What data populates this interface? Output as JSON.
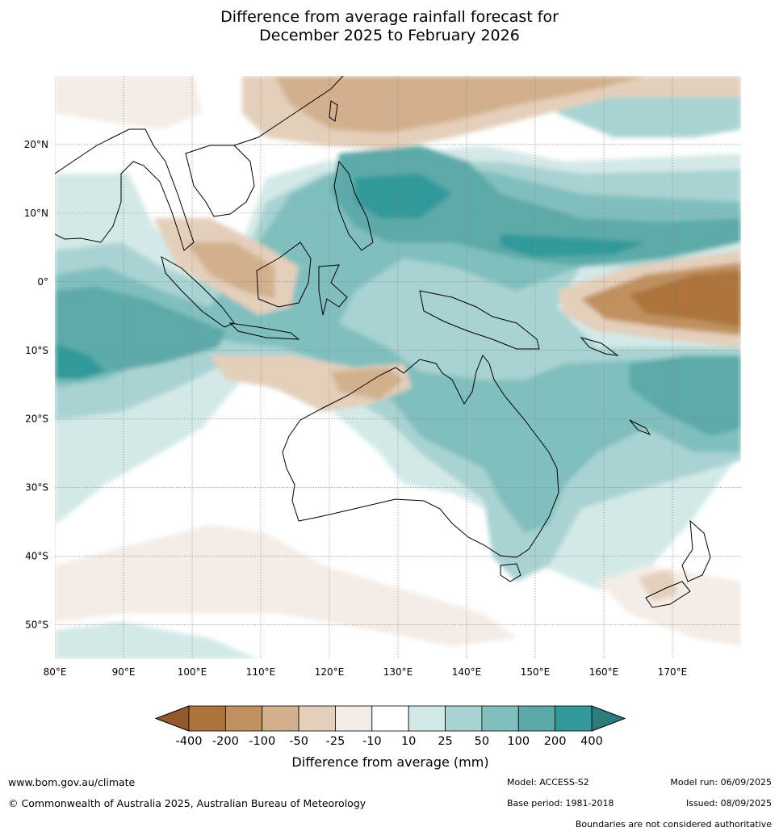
{
  "title": {
    "line1": "Difference from average rainfall forecast for",
    "line2": "December 2025 to February 2026"
  },
  "map": {
    "lon_range": [
      80,
      180
    ],
    "lat_range": [
      -55,
      30
    ],
    "lat_ticks": [
      {
        "value": 20,
        "label": "20°N"
      },
      {
        "value": 10,
        "label": "10°N"
      },
      {
        "value": 0,
        "label": "0°"
      },
      {
        "value": -10,
        "label": "10°S"
      },
      {
        "value": -20,
        "label": "20°S"
      },
      {
        "value": -30,
        "label": "30°S"
      },
      {
        "value": -40,
        "label": "40°S"
      },
      {
        "value": -50,
        "label": "50°S"
      }
    ],
    "lon_ticks": [
      {
        "value": 80,
        "label": "80°E"
      },
      {
        "value": 90,
        "label": "90°E"
      },
      {
        "value": 100,
        "label": "100°E"
      },
      {
        "value": 110,
        "label": "110°E"
      },
      {
        "value": 120,
        "label": "120°E"
      },
      {
        "value": 130,
        "label": "130°E"
      },
      {
        "value": 140,
        "label": "140°E"
      },
      {
        "value": 150,
        "label": "150°E"
      },
      {
        "value": 160,
        "label": "160°E"
      },
      {
        "value": 170,
        "label": "170°E"
      }
    ],
    "grid": true
  },
  "colorbar": {
    "title": "Difference from average (mm)",
    "ticks": [
      "-400",
      "-200",
      "-100",
      "-50",
      "-25",
      "-10",
      "10",
      "25",
      "50",
      "100",
      "200",
      "400"
    ],
    "colors": [
      "#ac733a",
      "#c0915f",
      "#d2b08d",
      "#e4cfbb",
      "#f4ece6",
      "#ffffff",
      "#d3e9e8",
      "#a9d3d2",
      "#80bfbe",
      "#5baaa9",
      "#32999a"
    ],
    "under_color": "#94582a",
    "over_color": "#2b7d7c"
  },
  "footer": {
    "url": "www.bom.gov.au/climate",
    "copyright": "© Commonwealth of Australia 2025, Australian Bureau of Meteorology",
    "model": "Model: ACCESS-S2",
    "base_period": "Base period: 1981-2018",
    "model_run": "Model run: 06/09/2025",
    "issued": "Issued: 08/09/2025",
    "disclaimer": "Boundaries are not considered authoritative"
  }
}
